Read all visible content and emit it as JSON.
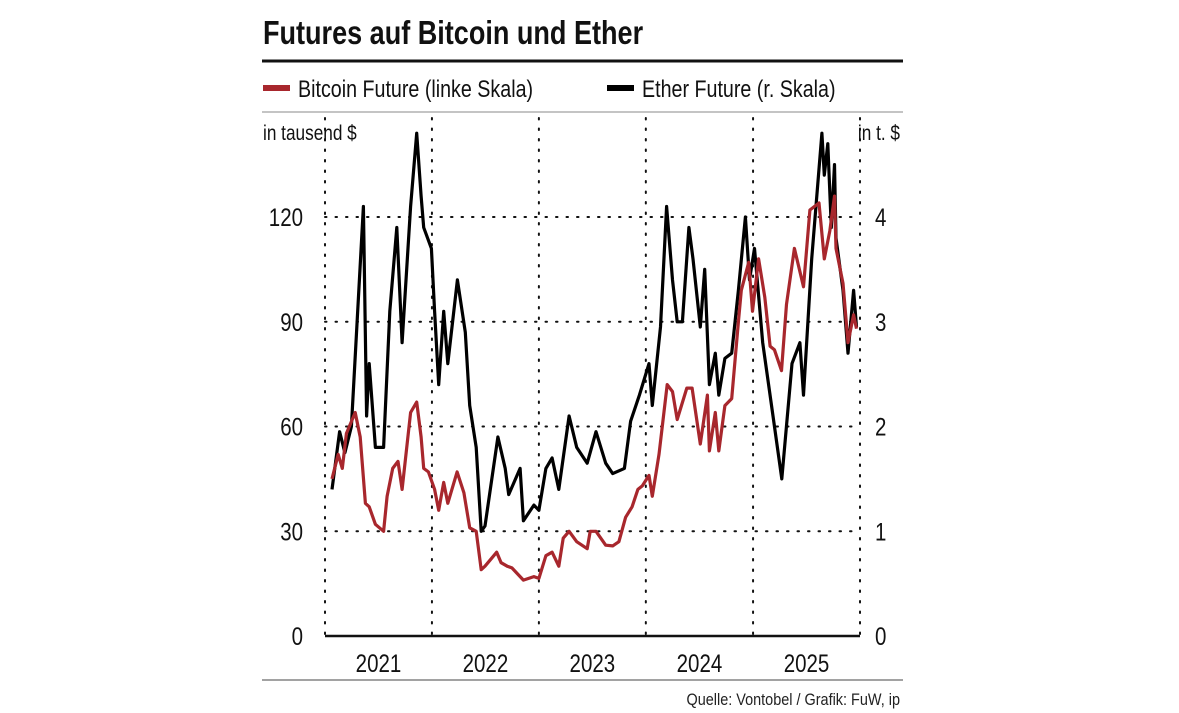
{
  "chart_data": {
    "type": "line",
    "title": "Futures auf Bitcoin und Ether",
    "y_left_label": "in tausend $",
    "y_right_label": "in t. $",
    "y_left_ticks": [
      "0",
      "30",
      "60",
      "90",
      "120"
    ],
    "y_right_ticks": [
      "0",
      "1",
      "2",
      "3",
      "4"
    ],
    "ylim_left": [
      0,
      140
    ],
    "ylim_right": [
      0,
      4.667
    ],
    "x_ticks": [
      "2021",
      "2022",
      "2023",
      "2024",
      "2025"
    ],
    "xlim": [
      "2021-01-01",
      "2026-01-01"
    ],
    "grid": "dotted",
    "legend_position": "top",
    "source": "Quelle: Vontobel / Grafik: FuW, ip",
    "series": [
      {
        "name": "Bitcoin Future (linke Skala)",
        "axis": "left",
        "color": "#a8272d",
        "points": [
          [
            "2021-01-25",
            45
          ],
          [
            "2021-02-15",
            52
          ],
          [
            "2021-03-01",
            48
          ],
          [
            "2021-03-15",
            58
          ],
          [
            "2021-04-14",
            64
          ],
          [
            "2021-05-01",
            57
          ],
          [
            "2021-05-19",
            38
          ],
          [
            "2021-06-01",
            37
          ],
          [
            "2021-06-22",
            32
          ],
          [
            "2021-07-20",
            30
          ],
          [
            "2021-08-01",
            40
          ],
          [
            "2021-08-20",
            48
          ],
          [
            "2021-09-07",
            50
          ],
          [
            "2021-09-21",
            42
          ],
          [
            "2021-10-20",
            64
          ],
          [
            "2021-11-10",
            67
          ],
          [
            "2021-11-25",
            57
          ],
          [
            "2021-12-04",
            48
          ],
          [
            "2021-12-20",
            47
          ],
          [
            "2022-01-10",
            42
          ],
          [
            "2022-01-24",
            36
          ],
          [
            "2022-02-10",
            44
          ],
          [
            "2022-02-24",
            38
          ],
          [
            "2022-03-28",
            47
          ],
          [
            "2022-04-20",
            41
          ],
          [
            "2022-05-10",
            31
          ],
          [
            "2022-06-01",
            30
          ],
          [
            "2022-06-18",
            19
          ],
          [
            "2022-07-01",
            20
          ],
          [
            "2022-08-10",
            24
          ],
          [
            "2022-08-25",
            21
          ],
          [
            "2022-09-15",
            20
          ],
          [
            "2022-10-01",
            19.5
          ],
          [
            "2022-11-09",
            16
          ],
          [
            "2022-12-15",
            17
          ],
          [
            "2023-01-01",
            16.5
          ],
          [
            "2023-01-25",
            23
          ],
          [
            "2023-02-15",
            24
          ],
          [
            "2023-03-10",
            20
          ],
          [
            "2023-03-25",
            28
          ],
          [
            "2023-04-14",
            30
          ],
          [
            "2023-05-10",
            27
          ],
          [
            "2023-06-15",
            25
          ],
          [
            "2023-06-25",
            30
          ],
          [
            "2023-07-15",
            30
          ],
          [
            "2023-08-17",
            26
          ],
          [
            "2023-09-10",
            25.8
          ],
          [
            "2023-10-01",
            27
          ],
          [
            "2023-10-24",
            34
          ],
          [
            "2023-11-15",
            37
          ],
          [
            "2023-12-05",
            42
          ],
          [
            "2023-12-20",
            43
          ],
          [
            "2024-01-12",
            46
          ],
          [
            "2024-01-23",
            40
          ],
          [
            "2024-02-15",
            52
          ],
          [
            "2024-03-14",
            72
          ],
          [
            "2024-04-01",
            70
          ],
          [
            "2024-04-17",
            62
          ],
          [
            "2024-05-20",
            71
          ],
          [
            "2024-06-07",
            71
          ],
          [
            "2024-07-05",
            55
          ],
          [
            "2024-07-29",
            69
          ],
          [
            "2024-08-05",
            53
          ],
          [
            "2024-08-25",
            64
          ],
          [
            "2024-09-06",
            53
          ],
          [
            "2024-09-27",
            66
          ],
          [
            "2024-10-20",
            68
          ],
          [
            "2024-11-12",
            90
          ],
          [
            "2024-11-22",
            99
          ],
          [
            "2024-12-17",
            107
          ],
          [
            "2024-12-30",
            93
          ],
          [
            "2025-01-20",
            108
          ],
          [
            "2025-02-10",
            97
          ],
          [
            "2025-02-28",
            83
          ],
          [
            "2025-03-15",
            82
          ],
          [
            "2025-04-08",
            76
          ],
          [
            "2025-04-25",
            95
          ],
          [
            "2025-05-22",
            111
          ],
          [
            "2025-06-22",
            100
          ],
          [
            "2025-07-14",
            122
          ],
          [
            "2025-08-14",
            124
          ],
          [
            "2025-09-01",
            108
          ],
          [
            "2025-09-20",
            116
          ],
          [
            "2025-10-06",
            126
          ],
          [
            "2025-10-11",
            111
          ],
          [
            "2025-11-04",
            101
          ],
          [
            "2025-11-21",
            84
          ],
          [
            "2025-12-10",
            92
          ],
          [
            "2025-12-20",
            88
          ]
        ]
      },
      {
        "name": "Ether Future (r. Skala)",
        "axis": "right",
        "color": "#000000",
        "points": [
          [
            "2021-01-25",
            1.4
          ],
          [
            "2021-02-20",
            1.95
          ],
          [
            "2021-03-10",
            1.75
          ],
          [
            "2021-04-01",
            2.0
          ],
          [
            "2021-05-12",
            4.1
          ],
          [
            "2021-05-23",
            2.1
          ],
          [
            "2021-06-01",
            2.6
          ],
          [
            "2021-06-22",
            1.8
          ],
          [
            "2021-07-20",
            1.8
          ],
          [
            "2021-08-10",
            3.1
          ],
          [
            "2021-09-03",
            3.9
          ],
          [
            "2021-09-21",
            2.8
          ],
          [
            "2021-10-20",
            4.1
          ],
          [
            "2021-11-10",
            4.8
          ],
          [
            "2021-11-25",
            4.2
          ],
          [
            "2021-12-04",
            3.9
          ],
          [
            "2021-12-30",
            3.7
          ],
          [
            "2022-01-10",
            3.1
          ],
          [
            "2022-01-24",
            2.4
          ],
          [
            "2022-02-10",
            3.1
          ],
          [
            "2022-02-24",
            2.6
          ],
          [
            "2022-03-29",
            3.4
          ],
          [
            "2022-04-25",
            2.9
          ],
          [
            "2022-05-10",
            2.2
          ],
          [
            "2022-06-01",
            1.8
          ],
          [
            "2022-06-18",
            1.0
          ],
          [
            "2022-07-01",
            1.05
          ],
          [
            "2022-08-14",
            1.9
          ],
          [
            "2022-09-08",
            1.6
          ],
          [
            "2022-09-20",
            1.35
          ],
          [
            "2022-10-29",
            1.6
          ],
          [
            "2022-11-09",
            1.1
          ],
          [
            "2022-12-15",
            1.25
          ],
          [
            "2023-01-01",
            1.2
          ],
          [
            "2023-01-25",
            1.6
          ],
          [
            "2023-02-15",
            1.7
          ],
          [
            "2023-03-10",
            1.4
          ],
          [
            "2023-04-14",
            2.1
          ],
          [
            "2023-05-10",
            1.8
          ],
          [
            "2023-06-15",
            1.65
          ],
          [
            "2023-07-15",
            1.95
          ],
          [
            "2023-08-17",
            1.65
          ],
          [
            "2023-09-10",
            1.55
          ],
          [
            "2023-10-20",
            1.6
          ],
          [
            "2023-11-10",
            2.05
          ],
          [
            "2023-12-10",
            2.3
          ],
          [
            "2024-01-12",
            2.6
          ],
          [
            "2024-01-23",
            2.2
          ],
          [
            "2024-02-20",
            2.95
          ],
          [
            "2024-03-12",
            4.1
          ],
          [
            "2024-04-01",
            3.4
          ],
          [
            "2024-04-17",
            3.0
          ],
          [
            "2024-05-05",
            3.0
          ],
          [
            "2024-05-27",
            3.9
          ],
          [
            "2024-06-10",
            3.6
          ],
          [
            "2024-07-05",
            2.95
          ],
          [
            "2024-07-20",
            3.5
          ],
          [
            "2024-08-05",
            2.4
          ],
          [
            "2024-08-25",
            2.7
          ],
          [
            "2024-09-06",
            2.3
          ],
          [
            "2024-09-27",
            2.65
          ],
          [
            "2024-10-20",
            2.7
          ],
          [
            "2024-11-12",
            3.3
          ],
          [
            "2024-12-06",
            4.0
          ],
          [
            "2024-12-20",
            3.4
          ],
          [
            "2025-01-06",
            3.7
          ],
          [
            "2025-02-03",
            2.8
          ],
          [
            "2025-03-10",
            2.1
          ],
          [
            "2025-04-09",
            1.5
          ],
          [
            "2025-05-14",
            2.6
          ],
          [
            "2025-06-10",
            2.8
          ],
          [
            "2025-06-22",
            2.3
          ],
          [
            "2025-07-20",
            3.6
          ],
          [
            "2025-08-24",
            4.8
          ],
          [
            "2025-09-01",
            4.4
          ],
          [
            "2025-09-13",
            4.7
          ],
          [
            "2025-09-25",
            3.9
          ],
          [
            "2025-10-06",
            4.5
          ],
          [
            "2025-10-11",
            3.8
          ],
          [
            "2025-11-04",
            3.3
          ],
          [
            "2025-11-21",
            2.7
          ],
          [
            "2025-12-10",
            3.3
          ],
          [
            "2025-12-20",
            2.95
          ]
        ]
      }
    ]
  }
}
